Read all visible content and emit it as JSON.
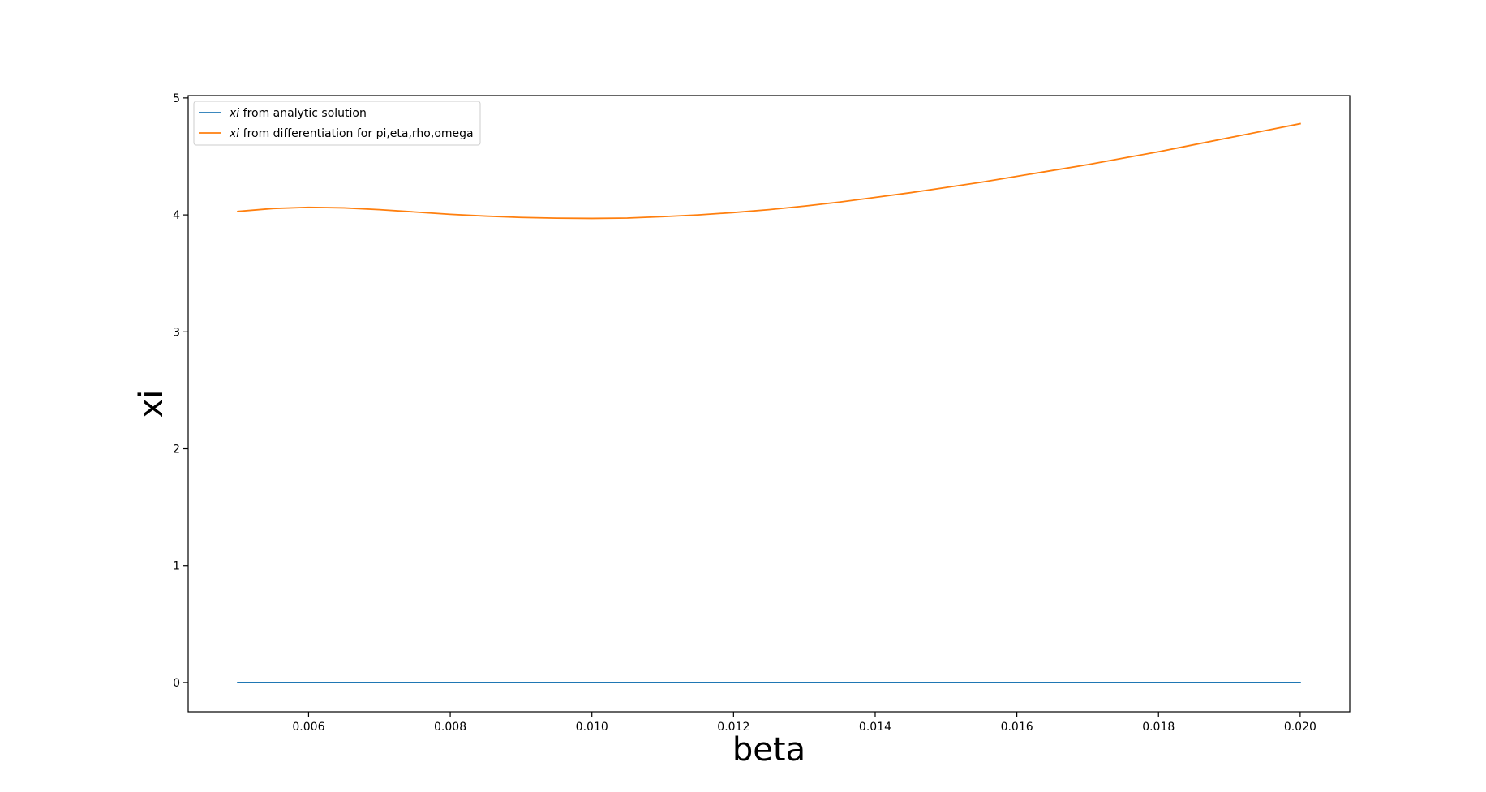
{
  "chart_data": {
    "type": "line",
    "title": "",
    "xlabel": "beta",
    "ylabel": "xi",
    "xlim": [
      0.0043,
      0.0207
    ],
    "ylim": [
      -0.25,
      5.02
    ],
    "xticks": [
      {
        "value": 0.006,
        "label": "0.006"
      },
      {
        "value": 0.008,
        "label": "0.008"
      },
      {
        "value": 0.01,
        "label": "0.010"
      },
      {
        "value": 0.012,
        "label": "0.012"
      },
      {
        "value": 0.014,
        "label": "0.014"
      },
      {
        "value": 0.016,
        "label": "0.016"
      },
      {
        "value": 0.018,
        "label": "0.018"
      },
      {
        "value": 0.02,
        "label": "0.020"
      }
    ],
    "yticks": [
      {
        "value": 0,
        "label": "0"
      },
      {
        "value": 1,
        "label": "1"
      },
      {
        "value": 2,
        "label": "2"
      },
      {
        "value": 3,
        "label": "3"
      },
      {
        "value": 4,
        "label": "4"
      },
      {
        "value": 5,
        "label": "5"
      }
    ],
    "grid": false,
    "legend_position": "top-left",
    "series": [
      {
        "name_math": "xi",
        "name_rest": " from analytic solution",
        "color": "#1f77b4",
        "x": [
          0.005,
          0.006,
          0.007,
          0.008,
          0.009,
          0.01,
          0.011,
          0.012,
          0.013,
          0.014,
          0.015,
          0.016,
          0.017,
          0.018,
          0.019,
          0.02
        ],
        "y": [
          0,
          0,
          0,
          0,
          0,
          0,
          0,
          0,
          0,
          0,
          0,
          0,
          0,
          0,
          0,
          0
        ]
      },
      {
        "name_math": "xi",
        "name_rest": " from differentiation for pi,eta,rho,omega",
        "color": "#ff7f0e",
        "x": [
          0.005,
          0.0055,
          0.006,
          0.0065,
          0.007,
          0.0075,
          0.008,
          0.0085,
          0.009,
          0.0095,
          0.01,
          0.0105,
          0.011,
          0.0115,
          0.012,
          0.0125,
          0.013,
          0.0135,
          0.014,
          0.0145,
          0.015,
          0.0155,
          0.016,
          0.0165,
          0.017,
          0.0175,
          0.018,
          0.0185,
          0.019,
          0.0195,
          0.02
        ],
        "y": [
          4.03,
          4.055,
          4.065,
          4.06,
          4.045,
          4.025,
          4.005,
          3.99,
          3.978,
          3.972,
          3.97,
          3.973,
          3.985,
          4.0,
          4.02,
          4.045,
          4.075,
          4.11,
          4.15,
          4.19,
          4.235,
          4.28,
          4.33,
          4.38,
          4.43,
          4.485,
          4.54,
          4.6,
          4.66,
          4.72,
          4.78
        ]
      }
    ]
  }
}
